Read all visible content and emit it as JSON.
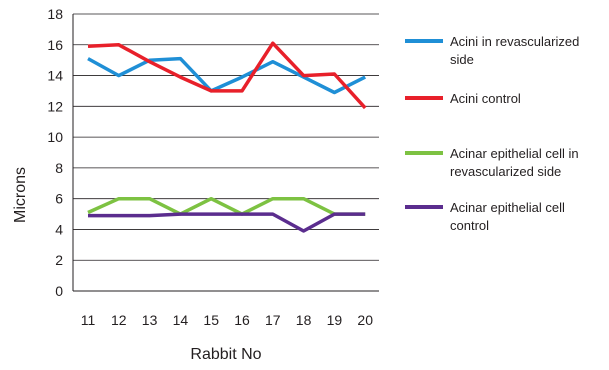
{
  "chart_data": {
    "type": "line",
    "xlabel": "Rabbit No",
    "ylabel": "Microns",
    "x": [
      "11",
      "12",
      "13",
      "14",
      "15",
      "16",
      "17",
      "18",
      "19",
      "20"
    ],
    "ylim": [
      0,
      18
    ],
    "yticks": [
      "0",
      "2",
      "4",
      "6",
      "8",
      "10",
      "12",
      "14",
      "16",
      "18"
    ],
    "grid": "horizontal",
    "legend_position": "right",
    "series": [
      {
        "name": "Acini in revascularized side",
        "color": "#1f8fd6",
        "values": [
          15.1,
          14.0,
          15.0,
          15.1,
          13.0,
          13.9,
          14.9,
          13.9,
          12.9,
          13.9
        ]
      },
      {
        "name": "Acini control",
        "color": "#e8202a",
        "values": [
          15.9,
          16.0,
          14.9,
          13.9,
          13.0,
          13.0,
          16.1,
          14.0,
          14.1,
          11.9
        ]
      },
      {
        "name": "Acinar epithelial cell in revascularized side",
        "color": "#7dc242",
        "values": [
          5.1,
          6.0,
          6.0,
          5.0,
          6.0,
          5.0,
          6.0,
          6.0,
          5.0,
          5.0
        ]
      },
      {
        "name": "Acinar epithelial cell control",
        "color": "#5b2d8e",
        "values": [
          4.9,
          4.9,
          4.9,
          5.0,
          5.0,
          5.0,
          5.0,
          3.9,
          5.0,
          5.0
        ]
      }
    ],
    "legend": [
      {
        "lines": [
          "Acini in revascularized",
          "side"
        ]
      },
      {
        "lines": [
          "Acini control"
        ]
      },
      {
        "lines": [
          "Acinar epithelial cell in",
          "revascularized side"
        ]
      },
      {
        "lines": [
          "Acinar epithelial cell",
          "control"
        ]
      }
    ]
  }
}
